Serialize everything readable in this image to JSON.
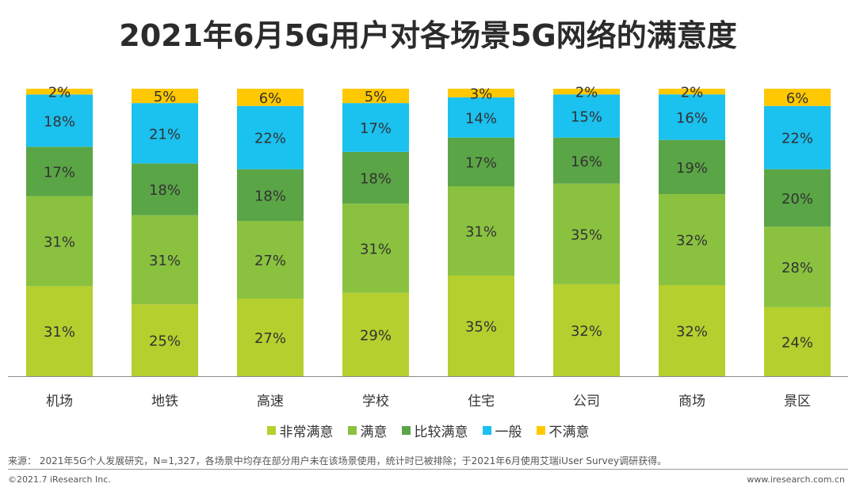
{
  "title": "2021年6月5G用户对各场景5G网络的满意度",
  "chart_data": {
    "type": "bar",
    "stacked": true,
    "normalized": true,
    "categories": [
      "机场",
      "地铁",
      "高速",
      "学校",
      "住宅",
      "公司",
      "商场",
      "景区"
    ],
    "series": [
      {
        "name": "非常满意",
        "color": "#b5cf2e",
        "values": [
          31,
          25,
          27,
          29,
          35,
          32,
          32,
          24
        ]
      },
      {
        "name": "满意",
        "color": "#8ac240",
        "values": [
          31,
          31,
          27,
          31,
          31,
          35,
          32,
          28
        ]
      },
      {
        "name": "比较满意",
        "color": "#5aa546",
        "values": [
          17,
          18,
          18,
          18,
          17,
          16,
          19,
          20
        ]
      },
      {
        "name": "一般",
        "color": "#1bc1ef",
        "values": [
          18,
          21,
          22,
          17,
          14,
          15,
          16,
          22
        ]
      },
      {
        "name": "不满意",
        "color": "#ffc800",
        "values": [
          2,
          5,
          6,
          5,
          3,
          2,
          2,
          6
        ]
      }
    ],
    "value_suffix": "%",
    "legend_position": "bottom",
    "grid": false
  },
  "source_note": "来源： 2021年5G个人发展研究，N=1,327，各场景中均存在部分用户未在该场景使用，统计时已被排除；于2021年6月使用艾瑞iUser Survey调研获得。",
  "copyright": "©2021.7 iResearch Inc.",
  "website": "www.iresearch.com.cn"
}
